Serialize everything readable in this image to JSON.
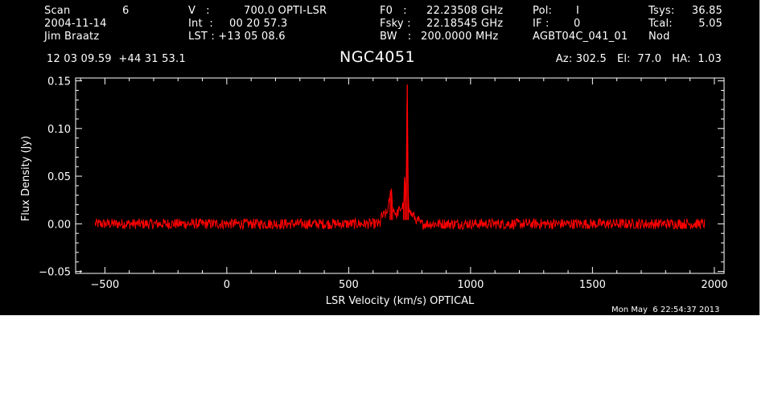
{
  "header": {
    "scan_label": "Scan",
    "scan_value": "6",
    "date": "2004-11-14",
    "observer": "Jim Braatz",
    "v_label": "V   :",
    "v_value": "700.0 OPTI-LSR",
    "int_label": "Int  :",
    "int_value": "00 20 57.3",
    "lst_label": "LST : +13 05 08.6",
    "f0_label": "F0   :",
    "f0_value": "22.23508 GHz",
    "fsky_label": "Fsky :",
    "fsky_value": "22.18545 GHz",
    "bw_label": "BW   :",
    "bw_value": "200.0000 MHz",
    "pol_label": "Pol:",
    "pol_value": "I",
    "if_label": "IF :",
    "if_value": "0",
    "project": "AGBT04C_041_01",
    "tsys_label": "Tsys:",
    "tsys_value": "36.85",
    "tcal_label": "Tcal:",
    "tcal_value": "5.05",
    "mode": "Nod",
    "coords": "12 03 09.59  +44 31 53.1",
    "object": "NGC4051",
    "az_el_ha": "Az: 302.5   El:  77.0   HA:  1.03",
    "timestamp": "Mon May  6 22:54:37 2013"
  },
  "colors": {
    "background": "#000000",
    "axes": "#ffffff",
    "trace": "#ff0000"
  },
  "chart_data": {
    "type": "line",
    "title": "NGC4051",
    "xlabel": "LSR Velocity (km/s) OPTICAL",
    "ylabel": "Flux Density (Jy)",
    "xlim": [
      -620,
      2040
    ],
    "ylim": [
      -0.052,
      0.153
    ],
    "x_ticks": [
      -500,
      0,
      500,
      1000,
      1500,
      2000
    ],
    "x_tick_labels": [
      "−500",
      "0",
      "500",
      "1000",
      "1500",
      "2000"
    ],
    "y_ticks": [
      -0.05,
      0.0,
      0.05,
      0.1,
      0.15
    ],
    "y_tick_labels": [
      "−0.05",
      "0.00",
      "0.05",
      "0.10",
      "0.15"
    ],
    "grid": false,
    "series": [
      {
        "color": "#ff0000",
        "x_range": [
          -540,
          1960
        ],
        "noise_rms": 0.0035,
        "baseline": 0.0,
        "points": [
          [
            -540,
            0.008
          ],
          [
            -400,
            -0.006
          ],
          [
            -250,
            0.006
          ],
          [
            -100,
            -0.005
          ],
          [
            50,
            0.005
          ],
          [
            200,
            -0.006
          ],
          [
            350,
            0.006
          ],
          [
            500,
            -0.004
          ],
          [
            600,
            0.002
          ],
          [
            640,
            0.008
          ],
          [
            660,
            0.012
          ],
          [
            670,
            0.03
          ],
          [
            675,
            0.037
          ],
          [
            680,
            0.018
          ],
          [
            695,
            0.01
          ],
          [
            710,
            0.015
          ],
          [
            725,
            0.02
          ],
          [
            730,
            0.049
          ],
          [
            735,
            0.022
          ],
          [
            740,
            0.146
          ],
          [
            745,
            0.028
          ],
          [
            750,
            0.012
          ],
          [
            760,
            0.01
          ],
          [
            780,
            0.004
          ],
          [
            850,
            -0.006
          ],
          [
            1000,
            0.006
          ],
          [
            1150,
            -0.008
          ],
          [
            1300,
            0.005
          ],
          [
            1450,
            -0.006
          ],
          [
            1600,
            0.005
          ],
          [
            1750,
            -0.006
          ],
          [
            1960,
            0.004
          ]
        ]
      }
    ]
  }
}
